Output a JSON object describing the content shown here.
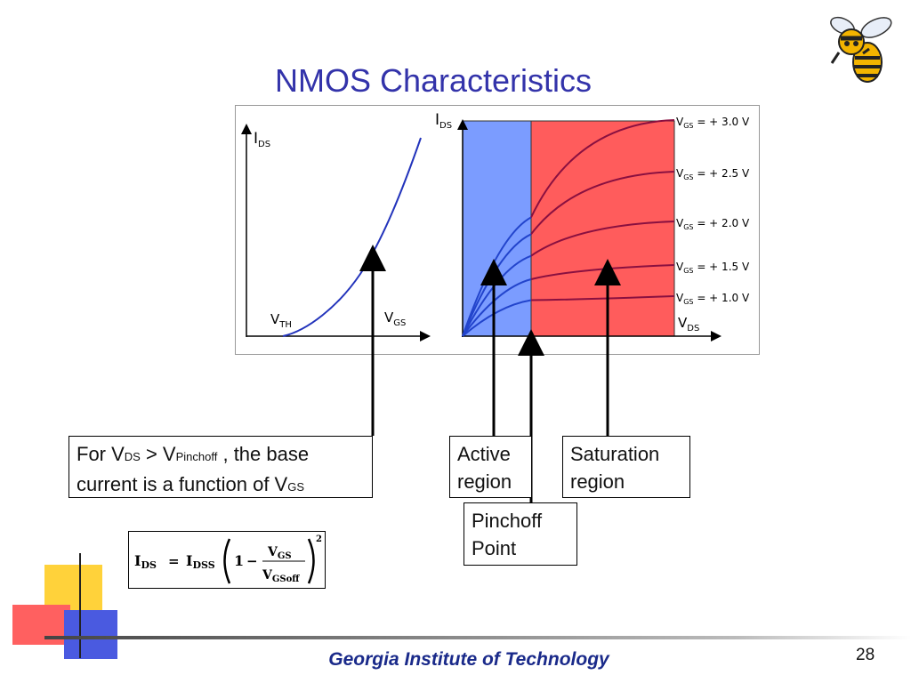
{
  "slide": {
    "title": "NMOS Characteristics",
    "footer": "Georgia Institute of Technology",
    "page_number": "28"
  },
  "left_plot": {
    "y_axis_main": "I",
    "y_axis_sub": "DS",
    "vth_main": "V",
    "vth_sub": "TH",
    "vgs_main": "V",
    "vgs_sub": "GS"
  },
  "right_plot": {
    "y_axis_main": "I",
    "y_axis_sub": "DS",
    "x_axis_main": "V",
    "x_axis_sub": "DS",
    "region_colors": {
      "active": "#7b9cff",
      "saturation": "#ff5c5c",
      "curve": "#2244cc",
      "curve_sat": "#8a1040"
    },
    "curve_labels": [
      {
        "v": "V",
        "sub": "GS",
        "rest": " = + 3.0 V"
      },
      {
        "v": "V",
        "sub": "GS",
        "rest": " = + 2.5 V"
      },
      {
        "v": "V",
        "sub": "GS",
        "rest": " = + 2.0 V"
      },
      {
        "v": "V",
        "sub": "GS",
        "rest": " = + 1.5 V"
      },
      {
        "v": "V",
        "sub": "GS",
        "rest": " = + 1.0 V"
      }
    ]
  },
  "callouts": {
    "base_current": {
      "line1_a": "For V",
      "line1_sub1": "DS",
      "line1_b": " > V",
      "line1_sub2": "Pinchoff",
      "line1_c": " , the base",
      "line2_a": "current is a function of V",
      "line2_sub": "GS"
    },
    "active": {
      "line1": "Active",
      "line2": "region"
    },
    "saturation": {
      "line1": "Saturation",
      "line2": "region"
    },
    "pinchoff": {
      "line1": "Pinchoff",
      "line2": "Point"
    }
  },
  "formula": {
    "lhs_main": "I",
    "lhs_sub": "DS",
    "equals": "=",
    "idss_main": "I",
    "idss_sub": "DSS",
    "one": "1",
    "minus": "−",
    "num_main": "V",
    "num_sub": "GS",
    "den_main": "V",
    "den_sub": "GSoff",
    "exponent": "2"
  }
}
